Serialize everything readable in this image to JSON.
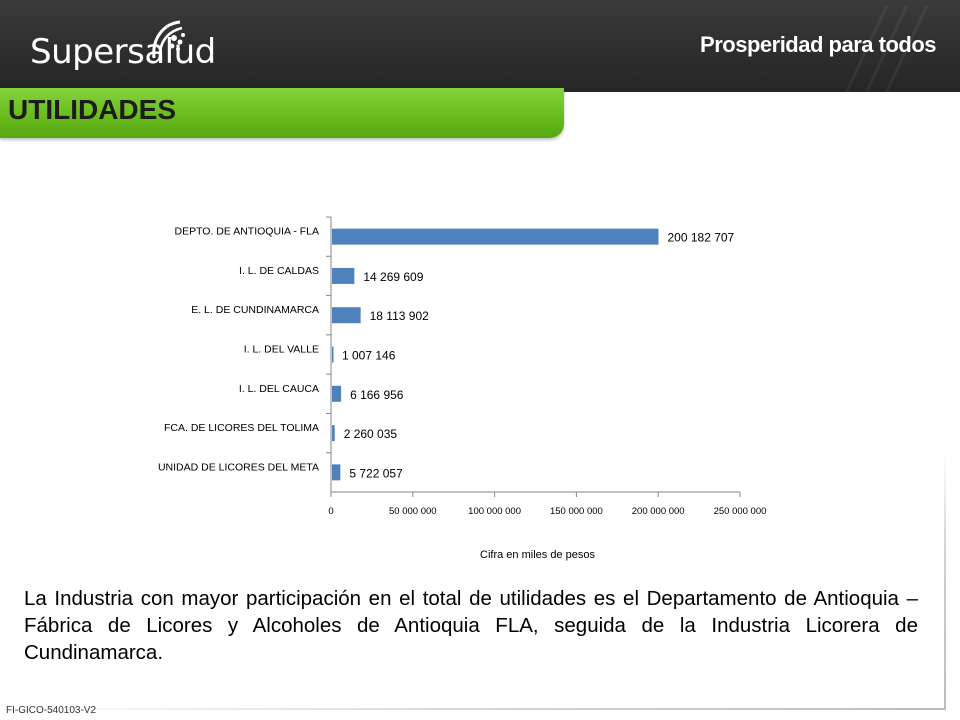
{
  "header": {
    "brand": "Supersalud",
    "slogan": "Prosperidad para todos"
  },
  "title": "UTILIDADES",
  "chart_data": {
    "type": "bar",
    "orientation": "horizontal",
    "categories": [
      "DEPTO. DE ANTIOQUIA - FLA",
      "I. L. DE CALDAS",
      "E. L. DE CUNDINAMARCA",
      "I. L. DEL VALLE",
      "I. L. DEL CAUCA",
      "FCA. DE LICORES DEL TOLIMA",
      "UNIDAD DE LICORES DEL META"
    ],
    "values": [
      200182707,
      14269609,
      18113902,
      1007146,
      6166956,
      2260035,
      5722057
    ],
    "data_labels": [
      "200 182 707",
      "14 269 609",
      "18 113 902",
      "1 007 146",
      "6 166 956",
      "2 260 035",
      "5 722 057"
    ],
    "xlim": [
      0,
      250000000
    ],
    "x_ticks": [
      0,
      50000000,
      100000000,
      150000000,
      200000000,
      250000000
    ],
    "x_tick_labels": [
      "0",
      "50 000 000",
      "100 000 000",
      "150 000 000",
      "200 000 000",
      "250 000 000"
    ],
    "xlabel": "Cifra en miles de pesos",
    "bar_color": "#4f81bd",
    "grid": false,
    "legend": false
  },
  "body_text": "La Industria con mayor participación en el total de utilidades es el Departamento de Antioquia – Fábrica de Licores y Alcoholes de Antioquia FLA, seguida de la Industria Licorera de Cundinamarca.",
  "footer_code": "FI-GICO-540103-V2",
  "colors": {
    "header": "#2e2e2e",
    "title_bar": "#6cbf20"
  }
}
